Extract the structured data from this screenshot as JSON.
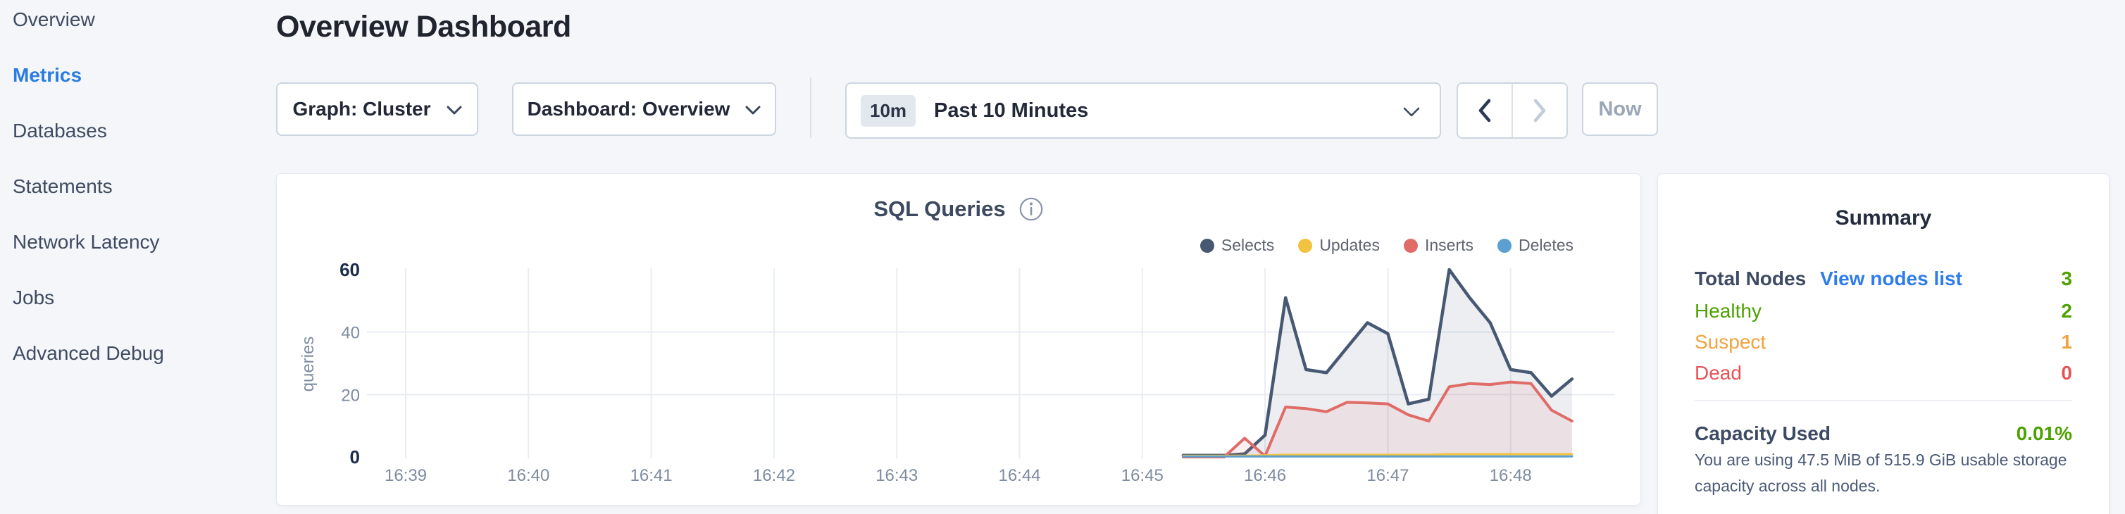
{
  "sidebar": {
    "items": [
      {
        "label": "Overview",
        "active": false
      },
      {
        "label": "Metrics",
        "active": true
      },
      {
        "label": "Databases",
        "active": false
      },
      {
        "label": "Statements",
        "active": false
      },
      {
        "label": "Network Latency",
        "active": false
      },
      {
        "label": "Jobs",
        "active": false
      },
      {
        "label": "Advanced Debug",
        "active": false
      }
    ]
  },
  "header": {
    "title": "Overview Dashboard"
  },
  "controls": {
    "graph_dropdown": "Graph: Cluster",
    "dashboard_dropdown": "Dashboard: Overview",
    "time_window": {
      "badge": "10m",
      "label": "Past 10 Minutes"
    },
    "now_label": "Now"
  },
  "chart_card": {
    "title": "SQL Queries"
  },
  "chart_data": {
    "type": "area",
    "title": "SQL Queries",
    "ylabel": "queries",
    "x_ticks": [
      "16:39",
      "16:40",
      "16:41",
      "16:42",
      "16:43",
      "16:44",
      "16:45",
      "16:46",
      "16:47",
      "16:48"
    ],
    "y_ticks": [
      0,
      20,
      40,
      60
    ],
    "ylim": [
      0,
      60
    ],
    "grid": true,
    "legend_position": "top-right",
    "series_start_time": "16:45:20",
    "interval_seconds": 10,
    "series": [
      {
        "name": "Selects",
        "color": "#475872",
        "values": [
          0.5,
          0.5,
          0.5,
          1,
          7,
          51,
          28,
          27,
          35,
          43,
          39.5,
          17,
          18.5,
          60,
          51,
          43,
          28,
          27,
          19.5,
          25
        ]
      },
      {
        "name": "Updates",
        "color": "#f1c341",
        "values": [
          0.4,
          0.4,
          0.4,
          0.4,
          0.5,
          0.7,
          0.7,
          0.7,
          0.7,
          0.7,
          0.7,
          0.7,
          0.7,
          0.9,
          0.9,
          0.9,
          0.9,
          0.9,
          0.9,
          0.9
        ]
      },
      {
        "name": "Inserts",
        "color": "#e06c68",
        "values": [
          0,
          0,
          0,
          6,
          0.3,
          16,
          15.5,
          14.5,
          17.5,
          17.3,
          17,
          13.5,
          11.5,
          22.5,
          23.5,
          23.2,
          24,
          23.5,
          15,
          11.5
        ]
      },
      {
        "name": "Deletes",
        "color": "#5ba0d0",
        "values": [
          0.15,
          0.15,
          0.15,
          0.15,
          0.15,
          0.15,
          0.15,
          0.15,
          0.15,
          0.15,
          0.15,
          0.15,
          0.15,
          0.15,
          0.15,
          0.15,
          0.15,
          0.15,
          0.15,
          0.15
        ]
      }
    ]
  },
  "summary": {
    "heading": "Summary",
    "total_nodes_label": "Total Nodes",
    "view_nodes_link": "View nodes list",
    "total_nodes_value": "3",
    "total_nodes_color": "#4da100",
    "status_rows": [
      {
        "label": "Healthy",
        "value": "2",
        "color": "#4da100"
      },
      {
        "label": "Suspect",
        "value": "1",
        "color": "#f0a340"
      },
      {
        "label": "Dead",
        "value": "0",
        "color": "#e35457"
      }
    ],
    "capacity_label": "Capacity Used",
    "capacity_value": "0.01%",
    "capacity_value_color": "#4da100",
    "capacity_description": "You are using 47.5 MiB of 515.9 GiB usable storage capacity across all nodes."
  },
  "colors": {
    "accent_blue": "#2a7ce0",
    "page_background": "#f4f6fa",
    "grid_line": "#e9edf3",
    "axis_label": "#7e8ba1",
    "axis_label_bold": "#1a2b4c"
  }
}
